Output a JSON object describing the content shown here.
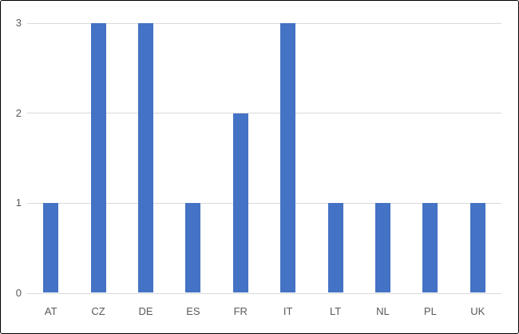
{
  "chart_data": {
    "type": "bar",
    "categories": [
      "AT",
      "CZ",
      "DE",
      "ES",
      "FR",
      "IT",
      "LT",
      "NL",
      "PL",
      "UK"
    ],
    "values": [
      1,
      3,
      3,
      1,
      2,
      3,
      1,
      1,
      1,
      1
    ],
    "title": "",
    "xlabel": "",
    "ylabel": "",
    "ylim": [
      0,
      3
    ],
    "yticks": [
      0,
      1,
      2,
      3
    ],
    "grid": true,
    "legend": "none",
    "bar_color": "#4472C4",
    "gridline_color": "#D9D9D9",
    "axis_line_color": "#D9D9D9",
    "label_color": "#595959",
    "frame_border_color": "#000000",
    "background_color": "#FFFFFF"
  }
}
